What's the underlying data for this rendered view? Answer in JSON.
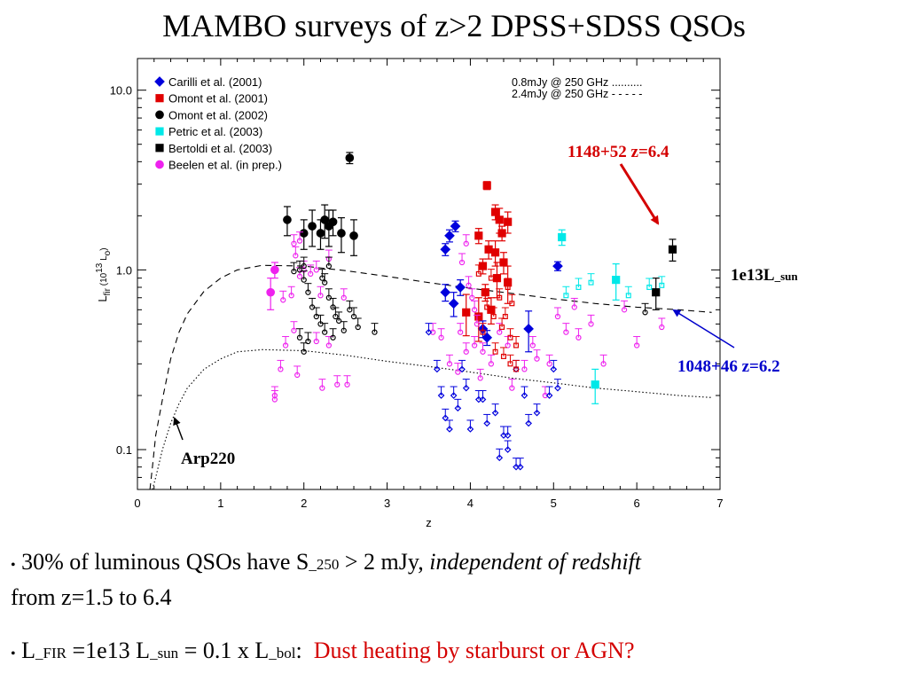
{
  "slide": {
    "title": "MAMBO surveys of z>2 DPSS+SDSS QSOs"
  },
  "annotations": {
    "top_qso": "1148+52 z=6.4",
    "second_qso": "1048+46 z=6.2",
    "lum_label_main": "1e13L",
    "lum_label_sub": "_sun",
    "arp": "Arp220"
  },
  "bullets": {
    "b1": {
      "dot": "•",
      "text1": "30% of luminous QSOs have S",
      "sub": "_250",
      "text2": " > 2 mJy, ",
      "italic": "independent of redshift",
      "line2": "from z=1.5 to 6.4"
    },
    "b2": {
      "dot": "•",
      "t1": "L",
      "s1": "_FIR",
      "t2": " =1e13 L",
      "s2": "_sun",
      "t3": " = 0.1 x L",
      "s3": "_bol",
      "t4": ":  ",
      "red": "Dust heating by starburst or AGN?"
    }
  },
  "colors": {
    "blue": "#0000dd",
    "red": "#e00000",
    "black": "#000000",
    "cyan": "#00e8e8",
    "magenta": "#ee22ee",
    "ann_red": "#d40000",
    "ann_blue": "#0000cc"
  },
  "chart_data": {
    "type": "scatter",
    "xlabel": "z",
    "ylabel_main": "L",
    "ylabel_sub": "fir",
    "ylabel_unit": "(10",
    "ylabel_exp": "13",
    "ylabel_tail": " L",
    "ylabel_sun": "o",
    "ylabel_close": ")",
    "xlim": [
      0,
      7
    ],
    "ylim": [
      0.06,
      15
    ],
    "yscale": "log",
    "x_ticks": [
      "0",
      "1",
      "2",
      "3",
      "4",
      "5",
      "6",
      "7"
    ],
    "y_ticks": [
      {
        "v": 0.1,
        "label": "0.1"
      },
      {
        "v": 1.0,
        "label": "1.0"
      },
      {
        "v": 10.0,
        "label": "10.0"
      }
    ],
    "legend_position": "top-left",
    "lines_legend_position": "top-right",
    "lines_legend": [
      {
        "label": "0.8mJy @ 250 GHz ..........",
        "style": "dotted"
      },
      {
        "label": "2.4mJy @ 250 GHz - - - - -",
        "style": "dashed"
      }
    ],
    "sensitivity_curves": [
      {
        "name": "0.8mJy",
        "style": "dotted",
        "x": [
          0.18,
          0.22,
          0.3,
          0.4,
          0.5,
          0.6,
          0.8,
          1.0,
          1.2,
          1.5,
          2.0,
          2.5,
          3.0,
          3.5,
          4.0,
          4.5,
          5.0,
          5.5,
          6.0,
          6.5,
          6.9
        ],
        "y": [
          0.06,
          0.07,
          0.1,
          0.14,
          0.18,
          0.22,
          0.28,
          0.32,
          0.35,
          0.36,
          0.355,
          0.335,
          0.31,
          0.29,
          0.27,
          0.25,
          0.235,
          0.22,
          0.21,
          0.2,
          0.195
        ]
      },
      {
        "name": "2.4mJy",
        "style": "dashed",
        "x": [
          0.15,
          0.18,
          0.22,
          0.3,
          0.4,
          0.5,
          0.6,
          0.8,
          1.0,
          1.2,
          1.5,
          2.0,
          2.5,
          3.0,
          3.5,
          4.0,
          4.5,
          5.0,
          5.5,
          6.0,
          6.5,
          6.9
        ],
        "y": [
          0.06,
          0.08,
          0.12,
          0.19,
          0.32,
          0.45,
          0.57,
          0.76,
          0.9,
          1.0,
          1.06,
          1.05,
          0.99,
          0.92,
          0.85,
          0.79,
          0.74,
          0.69,
          0.65,
          0.62,
          0.6,
          0.58
        ]
      }
    ],
    "series": [
      {
        "name": "Carilli et al. (2001)",
        "marker": "diamond",
        "filled": true,
        "color": "#0000dd",
        "points": [
          [
            3.7,
            1.3,
            0.1
          ],
          [
            3.75,
            1.55,
            0.12
          ],
          [
            3.82,
            1.75,
            0.12
          ],
          [
            3.7,
            0.75,
            0.08
          ],
          [
            3.8,
            0.65,
            0.1
          ],
          [
            3.88,
            0.8,
            0.08
          ],
          [
            4.15,
            0.47,
            0.05
          ],
          [
            4.2,
            0.42,
            0.04
          ],
          [
            4.7,
            0.47,
            0.12
          ],
          [
            5.05,
            1.05,
            0.06
          ]
        ]
      },
      {
        "name": "Omont et al. (2001)",
        "marker": "square",
        "filled": true,
        "color": "#e00000",
        "points": [
          [
            4.2,
            2.95,
            0.15
          ],
          [
            4.3,
            2.1,
            0.2
          ],
          [
            4.35,
            1.9,
            0.3
          ],
          [
            4.45,
            1.85,
            0.25
          ],
          [
            4.1,
            1.55,
            0.15
          ],
          [
            4.38,
            1.6,
            0.15
          ],
          [
            4.22,
            1.3,
            0.15
          ],
          [
            4.3,
            1.25,
            0.2
          ],
          [
            4.4,
            1.1,
            0.15
          ],
          [
            4.15,
            1.05,
            0.1
          ],
          [
            4.32,
            0.9,
            0.2
          ],
          [
            4.45,
            0.85,
            0.2
          ],
          [
            4.18,
            0.75,
            0.08
          ],
          [
            4.1,
            0.55,
            0.15
          ],
          [
            3.95,
            0.58,
            0.15
          ],
          [
            4.25,
            0.6,
            0.1
          ]
        ]
      },
      {
        "name": "Omont et al. (2002)",
        "marker": "circle",
        "filled": true,
        "color": "#000000",
        "points": [
          [
            1.8,
            1.9,
            0.35
          ],
          [
            2.0,
            1.6,
            0.3
          ],
          [
            2.1,
            1.75,
            0.4
          ],
          [
            2.2,
            1.6,
            0.3
          ],
          [
            2.25,
            1.9,
            0.4
          ],
          [
            2.3,
            1.75,
            0.4
          ],
          [
            2.35,
            1.85,
            0.3
          ],
          [
            2.45,
            1.6,
            0.35
          ],
          [
            2.55,
            4.2,
            0.3
          ],
          [
            2.6,
            1.55,
            0.35
          ]
        ]
      },
      {
        "name": "Petric et al. (2003)",
        "marker": "square",
        "filled": true,
        "color": "#00e8e8",
        "points": [
          [
            5.1,
            1.52,
            0.15
          ],
          [
            5.75,
            0.88,
            0.2
          ],
          [
            5.5,
            0.23,
            0.05
          ]
        ]
      },
      {
        "name": "Bertoldi et al. (2003)",
        "marker": "square",
        "filled": true,
        "color": "#000000",
        "points": [
          [
            6.23,
            0.75,
            0.15
          ],
          [
            6.43,
            1.3,
            0.18
          ]
        ]
      },
      {
        "name": "Beelen et al. (in prep.)",
        "marker": "circle",
        "filled": true,
        "color": "#ee22ee",
        "points": [
          [
            1.6,
            0.75,
            0.15
          ],
          [
            1.65,
            1.0,
            0.1
          ]
        ]
      }
    ],
    "upper_limits": [
      {
        "color": "#ee22ee",
        "marker": "circle",
        "points": [
          [
            1.65,
            0.19
          ],
          [
            1.65,
            0.2
          ],
          [
            1.72,
            0.28
          ],
          [
            1.78,
            0.38
          ],
          [
            1.75,
            0.68
          ],
          [
            1.85,
            0.72
          ],
          [
            1.88,
            0.46
          ],
          [
            1.92,
            0.26
          ],
          [
            1.95,
            0.92
          ],
          [
            2.08,
            0.95
          ],
          [
            2.15,
            0.4
          ],
          [
            2.2,
            0.72
          ],
          [
            2.22,
            0.22
          ],
          [
            2.3,
            0.38
          ],
          [
            2.4,
            0.23
          ],
          [
            2.48,
            0.7
          ],
          [
            2.52,
            0.23
          ],
          [
            1.9,
            1.2
          ],
          [
            1.95,
            1.45
          ],
          [
            2.0,
            1.0
          ],
          [
            2.3,
            1.15
          ],
          [
            1.88,
            1.4
          ],
          [
            2.15,
            1.0
          ],
          [
            3.9,
            1.1
          ],
          [
            3.95,
            1.4
          ],
          [
            3.98,
            0.82
          ],
          [
            4.02,
            0.7
          ],
          [
            4.05,
            0.6
          ],
          [
            4.08,
            0.5
          ],
          [
            3.88,
            0.45
          ],
          [
            3.95,
            0.35
          ],
          [
            4.05,
            0.38
          ],
          [
            4.15,
            0.35
          ],
          [
            4.25,
            0.3
          ],
          [
            4.12,
            0.25
          ],
          [
            4.35,
            0.45
          ],
          [
            4.45,
            0.38
          ],
          [
            4.5,
            0.22
          ],
          [
            4.65,
            0.28
          ],
          [
            4.75,
            0.38
          ],
          [
            4.8,
            0.32
          ],
          [
            4.9,
            0.2
          ],
          [
            4.95,
            0.3
          ],
          [
            5.05,
            0.55
          ],
          [
            5.15,
            0.45
          ],
          [
            5.25,
            0.62
          ],
          [
            5.3,
            0.42
          ],
          [
            5.45,
            0.5
          ],
          [
            5.6,
            0.3
          ],
          [
            5.85,
            0.6
          ],
          [
            6.0,
            0.38
          ],
          [
            6.3,
            0.48
          ],
          [
            3.55,
            0.45
          ],
          [
            3.65,
            0.42
          ],
          [
            3.75,
            0.3
          ],
          [
            3.85,
            0.27
          ]
        ]
      },
      {
        "color": "#000000",
        "marker": "circle",
        "points": [
          [
            1.88,
            0.98
          ],
          [
            1.95,
            1.0
          ],
          [
            2.0,
            1.05
          ],
          [
            2.0,
            0.88
          ],
          [
            2.05,
            0.75
          ],
          [
            2.1,
            0.62
          ],
          [
            2.15,
            0.55
          ],
          [
            2.2,
            0.5
          ],
          [
            2.22,
            0.9
          ],
          [
            2.25,
            0.85
          ],
          [
            2.3,
            0.7
          ],
          [
            2.35,
            0.62
          ],
          [
            2.38,
            0.55
          ],
          [
            2.42,
            0.52
          ],
          [
            2.48,
            0.46
          ],
          [
            2.55,
            0.6
          ],
          [
            2.6,
            0.55
          ],
          [
            2.65,
            0.48
          ],
          [
            2.85,
            0.45
          ],
          [
            2.05,
            0.4
          ],
          [
            2.25,
            0.45
          ],
          [
            2.35,
            0.42
          ],
          [
            1.95,
            0.42
          ],
          [
            2.0,
            0.35
          ],
          [
            2.3,
            1.05
          ],
          [
            6.1,
            0.58
          ]
        ]
      },
      {
        "color": "#0000dd",
        "marker": "diamond",
        "points": [
          [
            3.5,
            0.45
          ],
          [
            3.6,
            0.28
          ],
          [
            3.65,
            0.2
          ],
          [
            3.7,
            0.15
          ],
          [
            3.75,
            0.13
          ],
          [
            3.8,
            0.2
          ],
          [
            3.85,
            0.17
          ],
          [
            3.9,
            0.28
          ],
          [
            4.0,
            0.13
          ],
          [
            4.1,
            0.19
          ],
          [
            4.2,
            0.14
          ],
          [
            4.3,
            0.16
          ],
          [
            4.45,
            0.12
          ],
          [
            4.6,
            0.08
          ],
          [
            4.7,
            0.14
          ],
          [
            4.8,
            0.16
          ],
          [
            4.95,
            0.2
          ],
          [
            5.05,
            0.22
          ],
          [
            4.35,
            0.09
          ],
          [
            4.45,
            0.1
          ],
          [
            4.65,
            0.2
          ],
          [
            4.55,
            0.28
          ],
          [
            5.0,
            0.28
          ],
          [
            3.95,
            0.22
          ],
          [
            4.15,
            0.19
          ],
          [
            4.4,
            0.12
          ],
          [
            4.55,
            0.08
          ]
        ]
      },
      {
        "color": "#00e8e8",
        "marker": "square",
        "points": [
          [
            5.15,
            0.72
          ],
          [
            5.3,
            0.8
          ],
          [
            5.45,
            0.85
          ],
          [
            5.9,
            0.72
          ],
          [
            6.15,
            0.8
          ],
          [
            6.3,
            0.82
          ]
        ]
      },
      {
        "color": "#e00000",
        "marker": "square",
        "points": [
          [
            4.2,
            0.62
          ],
          [
            4.28,
            0.55
          ],
          [
            4.38,
            0.48
          ],
          [
            4.48,
            0.42
          ],
          [
            4.55,
            0.38
          ],
          [
            4.3,
            0.35
          ],
          [
            4.4,
            0.33
          ],
          [
            4.48,
            0.3
          ],
          [
            4.55,
            0.28
          ],
          [
            4.15,
            0.45
          ],
          [
            4.45,
            0.8
          ],
          [
            4.5,
            0.65
          ],
          [
            4.1,
            0.95
          ],
          [
            4.25,
            0.9
          ],
          [
            4.35,
            0.7
          ],
          [
            4.42,
            0.55
          ]
        ]
      }
    ]
  }
}
